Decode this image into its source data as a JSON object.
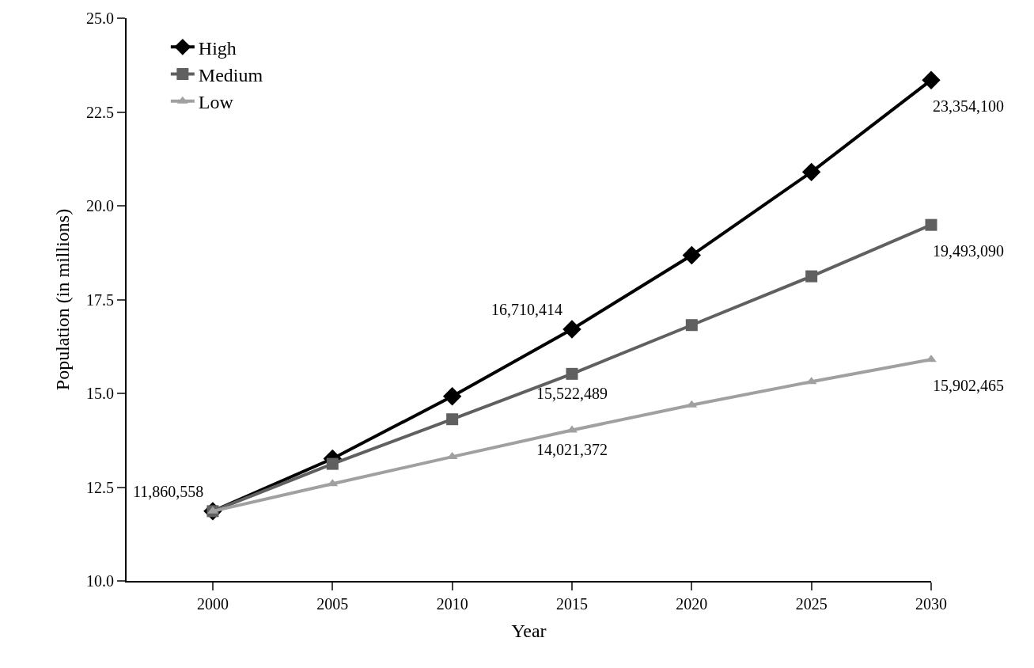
{
  "chart_data": {
    "type": "line",
    "xlabel": "Year",
    "ylabel": "Population (in millions)",
    "x": [
      2000,
      2005,
      2010,
      2015,
      2020,
      2025,
      2030
    ],
    "series": [
      {
        "name": "High",
        "color": "#000000",
        "marker": "diamond",
        "values": [
          11.86,
          13.26,
          14.92,
          16.71,
          18.68,
          20.9,
          23.35
        ]
      },
      {
        "name": "Medium",
        "color": "#606060",
        "marker": "square",
        "values": [
          11.86,
          13.12,
          14.31,
          15.52,
          16.82,
          18.12,
          19.49
        ]
      },
      {
        "name": "Low",
        "color": "#a0a0a0",
        "marker": "triangle",
        "values": [
          11.86,
          12.59,
          13.31,
          14.02,
          14.69,
          15.31,
          15.9
        ]
      }
    ],
    "annotations": [
      {
        "text": "11,860,558",
        "x": 2000,
        "y": 11.86
      },
      {
        "text": "16,710,414",
        "x": 2015,
        "y": 16.71
      },
      {
        "text": "23,354,100",
        "x": 2030,
        "y": 23.35
      },
      {
        "text": "15,522,489",
        "x": 2015,
        "y": 15.52
      },
      {
        "text": "19,493,090",
        "x": 2030,
        "y": 19.49
      },
      {
        "text": "14,021,372",
        "x": 2015,
        "y": 14.02
      },
      {
        "text": "15,902,465",
        "x": 2030,
        "y": 15.9
      }
    ],
    "xlim": [
      1996.4,
      2030
    ],
    "xticks": [
      2000,
      2005,
      2010,
      2015,
      2020,
      2025,
      2030
    ],
    "ylim": [
      10,
      25
    ],
    "yticks": [
      {
        "value": 10,
        "label": "10.0"
      },
      {
        "value": 12.5,
        "label": "12.5"
      },
      {
        "value": 15,
        "label": "15.0"
      },
      {
        "value": 17.5,
        "label": "17.5"
      },
      {
        "value": 20,
        "label": "20.0"
      },
      {
        "value": 22.5,
        "label": "22.5"
      },
      {
        "value": 25,
        "label": "25.0"
      }
    ],
    "legend": "top left",
    "line_style": "solid"
  }
}
